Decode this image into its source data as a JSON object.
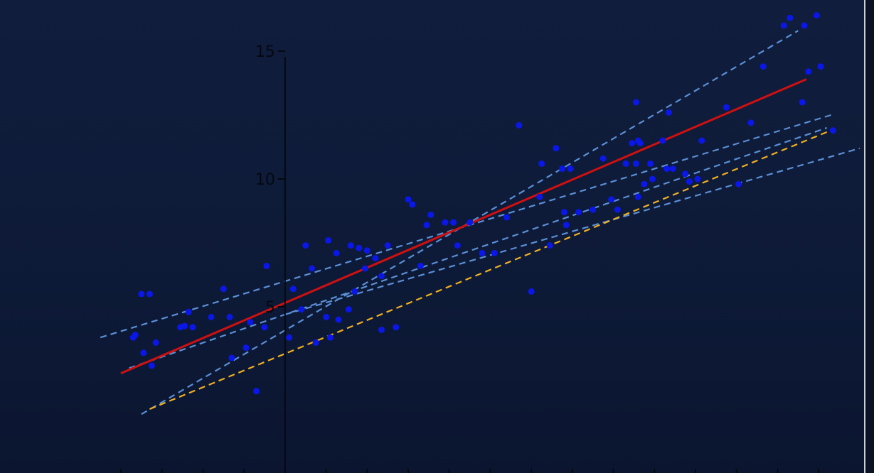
{
  "chart_data": {
    "type": "scatter",
    "title": "",
    "xlabel": "",
    "ylabel": "",
    "xlim": [
      -4,
      13.5
    ],
    "ylim": [
      -1.5,
      17
    ],
    "y_ticks": [
      {
        "value": 5,
        "label": "5"
      },
      {
        "value": 10,
        "label": "10"
      },
      {
        "value": 15,
        "label": "15"
      }
    ],
    "grid": false,
    "colors": {
      "points": "#0a17e8",
      "fit_line": "#d01010",
      "true_line": "#f0b020",
      "sample_lines": "#5b8fd6",
      "axis": "#05080f"
    },
    "points": [
      [
        -3.7,
        3.8
      ],
      [
        -3.65,
        3.9
      ],
      [
        -3.5,
        5.5
      ],
      [
        -3.3,
        5.5
      ],
      [
        -3.45,
        3.2
      ],
      [
        -3.15,
        3.6
      ],
      [
        -3.25,
        2.7
      ],
      [
        -2.55,
        4.2
      ],
      [
        -2.45,
        4.25
      ],
      [
        -2.35,
        4.8
      ],
      [
        -2.25,
        4.2
      ],
      [
        -1.8,
        4.6
      ],
      [
        -1.5,
        5.7
      ],
      [
        -1.35,
        4.6
      ],
      [
        -1.3,
        3.0
      ],
      [
        -0.95,
        3.4
      ],
      [
        -0.7,
        1.7
      ],
      [
        -0.85,
        4.4
      ],
      [
        -0.45,
        6.6
      ],
      [
        -0.5,
        4.2
      ],
      [
        0.1,
        3.8
      ],
      [
        0.2,
        5.7
      ],
      [
        0.4,
        4.9
      ],
      [
        0.5,
        7.4
      ],
      [
        0.65,
        6.5
      ],
      [
        0.75,
        3.6
      ],
      [
        1.05,
        7.6
      ],
      [
        1.0,
        4.6
      ],
      [
        1.1,
        3.8
      ],
      [
        1.25,
        7.1
      ],
      [
        1.3,
        4.5
      ],
      [
        1.55,
        4.9
      ],
      [
        1.6,
        7.4
      ],
      [
        1.7,
        5.6
      ],
      [
        1.8,
        7.3
      ],
      [
        2.0,
        7.2
      ],
      [
        1.95,
        6.5
      ],
      [
        2.2,
        6.9
      ],
      [
        2.35,
        4.1
      ],
      [
        2.35,
        6.2
      ],
      [
        2.5,
        7.4
      ],
      [
        2.7,
        4.2
      ],
      [
        3.0,
        9.2
      ],
      [
        3.1,
        9.0
      ],
      [
        3.3,
        6.6
      ],
      [
        3.45,
        8.2
      ],
      [
        3.55,
        8.6
      ],
      [
        3.9,
        8.3
      ],
      [
        4.1,
        8.3
      ],
      [
        4.2,
        7.4
      ],
      [
        4.5,
        8.3
      ],
      [
        4.8,
        7.1
      ],
      [
        5.1,
        7.1
      ],
      [
        5.4,
        8.5
      ],
      [
        5.7,
        12.1
      ],
      [
        6.0,
        5.6
      ],
      [
        6.25,
        10.6
      ],
      [
        6.2,
        9.3
      ],
      [
        6.45,
        7.4
      ],
      [
        6.6,
        11.2
      ],
      [
        6.75,
        10.4
      ],
      [
        6.8,
        8.7
      ],
      [
        6.85,
        8.2
      ],
      [
        6.95,
        10.4
      ],
      [
        7.15,
        8.7
      ],
      [
        7.5,
        8.8
      ],
      [
        7.75,
        10.8
      ],
      [
        7.95,
        9.2
      ],
      [
        8.1,
        8.8
      ],
      [
        8.3,
        10.6
      ],
      [
        8.55,
        13.0
      ],
      [
        8.45,
        11.4
      ],
      [
        8.6,
        11.5
      ],
      [
        8.65,
        11.4
      ],
      [
        8.55,
        10.6
      ],
      [
        8.6,
        9.3
      ],
      [
        8.75,
        9.8
      ],
      [
        8.9,
        10.6
      ],
      [
        8.95,
        10.0
      ],
      [
        9.2,
        11.5
      ],
      [
        9.3,
        10.4
      ],
      [
        9.45,
        10.4
      ],
      [
        9.35,
        12.6
      ],
      [
        9.75,
        10.2
      ],
      [
        9.85,
        9.9
      ],
      [
        10.05,
        10.0
      ],
      [
        10.15,
        11.5
      ],
      [
        10.75,
        12.8
      ],
      [
        11.05,
        9.8
      ],
      [
        11.35,
        12.2
      ],
      [
        11.65,
        14.4
      ],
      [
        12.15,
        16.0
      ],
      [
        12.3,
        16.3
      ],
      [
        12.6,
        13.0
      ],
      [
        12.65,
        16.0
      ],
      [
        12.75,
        14.2
      ],
      [
        12.95,
        16.4
      ],
      [
        13.05,
        14.4
      ],
      [
        13.35,
        11.9
      ]
    ],
    "lines": [
      {
        "role": "fit",
        "style": "solid",
        "x": [
          -4.0,
          12.7
        ],
        "y": [
          2.4,
          13.9
        ]
      },
      {
        "role": "true",
        "style": "dashed",
        "x": [
          -3.3,
          13.3
        ],
        "y": [
          1.0,
          11.9
        ]
      },
      {
        "role": "sample",
        "style": "dashed",
        "x": [
          -3.5,
          12.5
        ],
        "y": [
          0.8,
          15.8
        ]
      },
      {
        "role": "sample",
        "style": "dashed",
        "x": [
          -4.5,
          13.3
        ],
        "y": [
          3.8,
          12.5
        ]
      },
      {
        "role": "sample",
        "style": "dashed",
        "x": [
          -3.8,
          13.2
        ],
        "y": [
          2.6,
          12.0
        ]
      },
      {
        "role": "sample",
        "style": "dashed",
        "x": [
          0.0,
          14.0
        ],
        "y": [
          4.7,
          11.2
        ]
      }
    ]
  }
}
